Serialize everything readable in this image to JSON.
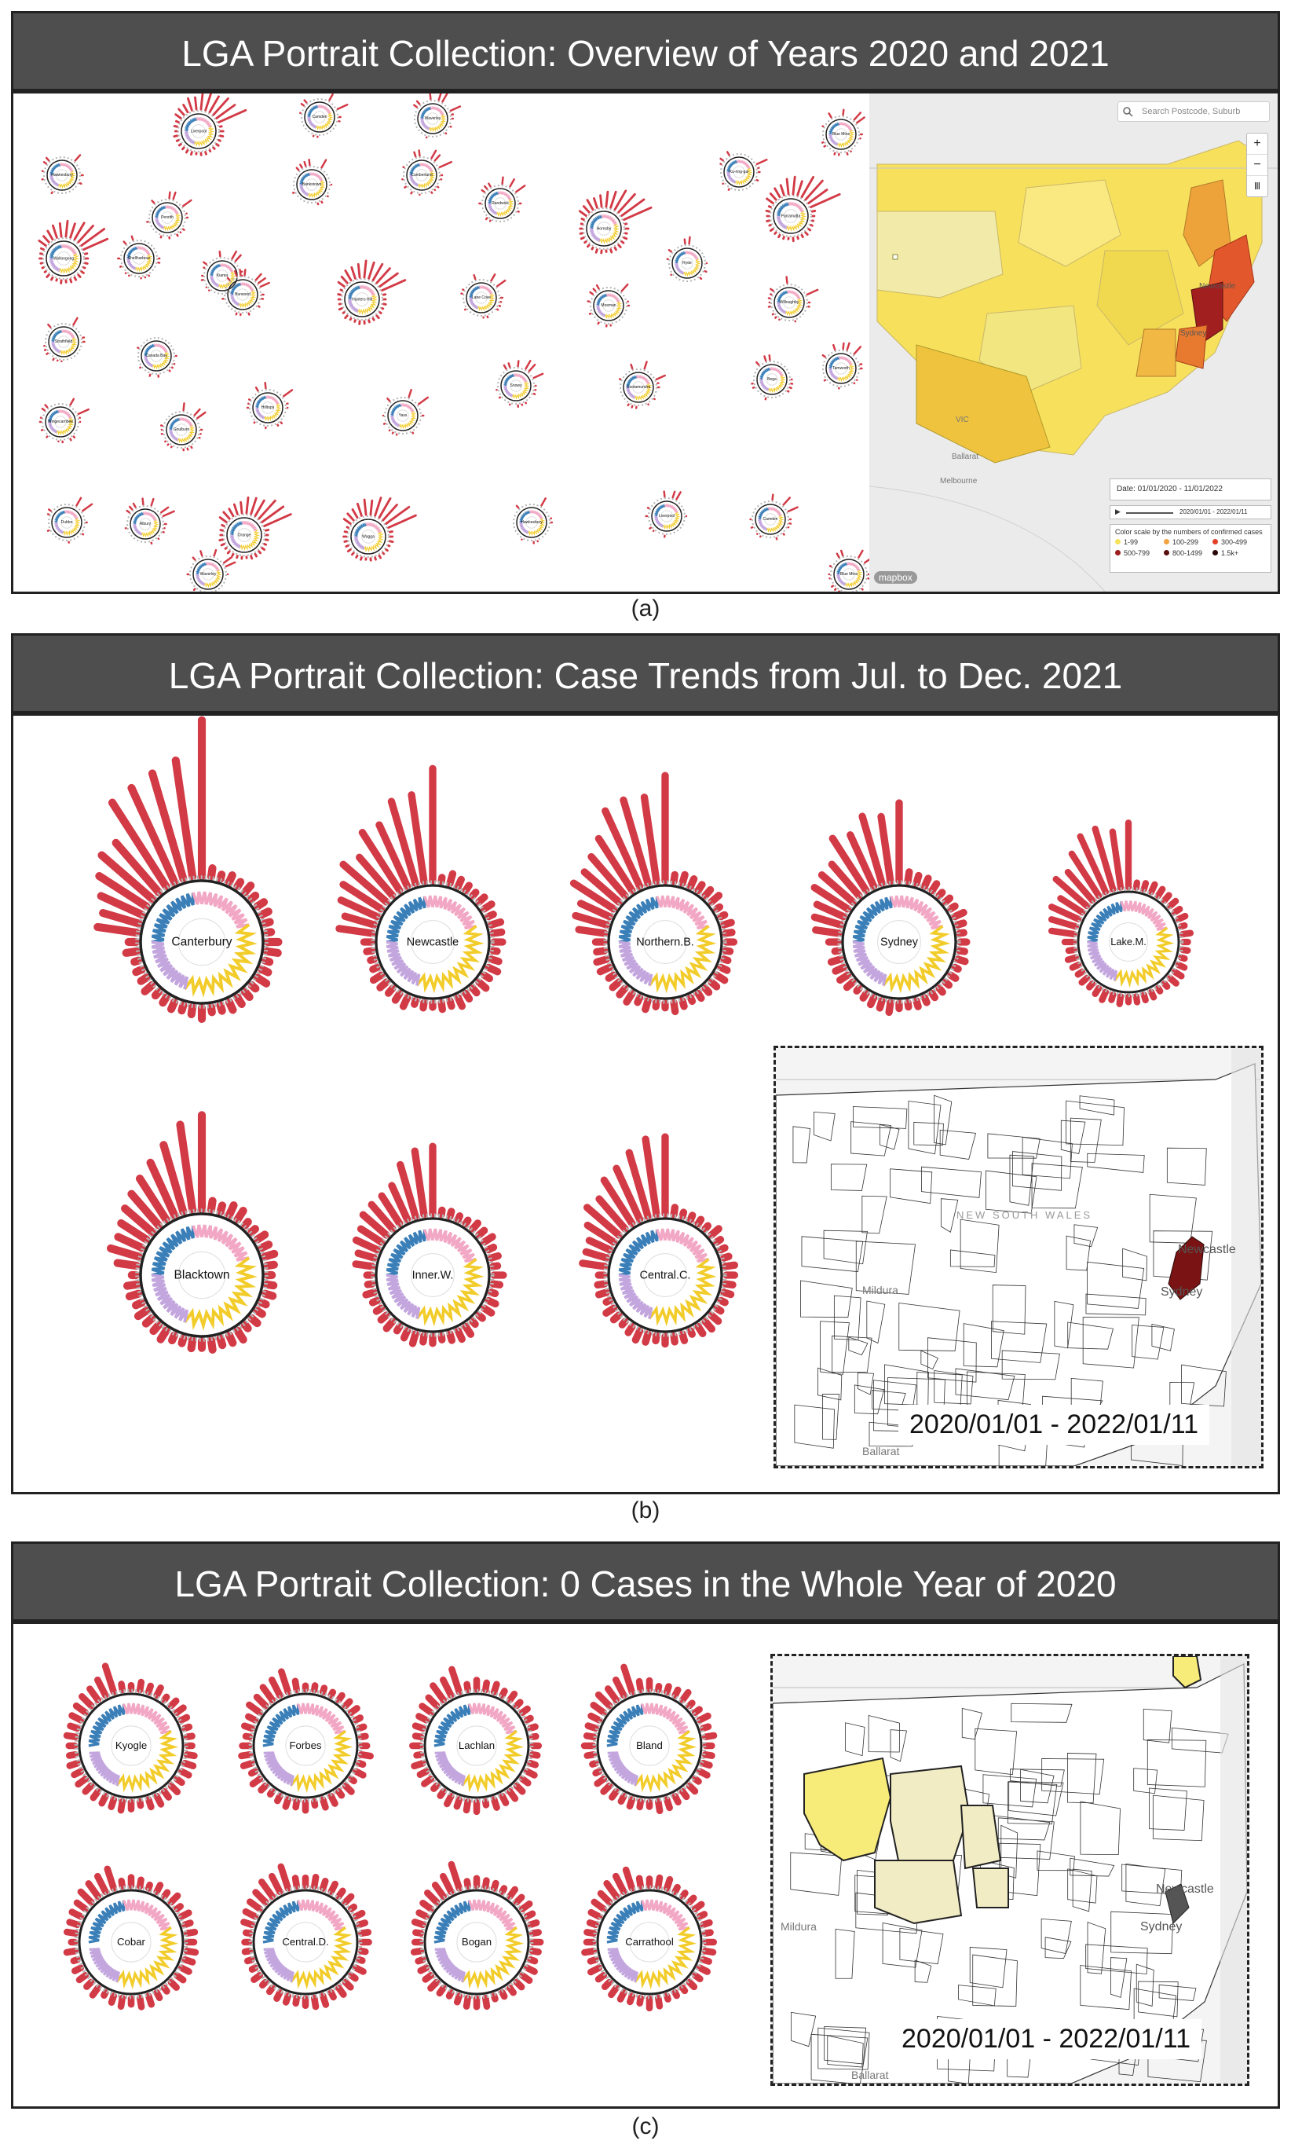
{
  "panel_a": {
    "title": "LGA Portrait Collection: Overview of Years 2020 and 2021",
    "caption": "(a)",
    "search_placeholder": "Search Postcode, Suburb",
    "zoom_in": "+",
    "zoom_out": "−",
    "layers": "Ⅲ",
    "map_labels": [
      "Newcastle",
      "Sydney",
      "VIC",
      "Melbourne",
      "Ballarat"
    ],
    "date_label": "Date: 01/01/2020 - 11/01/2022",
    "slider_range": "2020/01/01 - 2022/01/11",
    "legend_title": "Color scale by the numbers of confirmed cases",
    "legend": [
      {
        "label": "1-99",
        "color": "#f5e35a"
      },
      {
        "label": "100-299",
        "color": "#f1a340"
      },
      {
        "label": "300-499",
        "color": "#e2402a"
      },
      {
        "label": "500-799",
        "color": "#9c1e1e"
      },
      {
        "label": "800-1499",
        "color": "#5a1010"
      },
      {
        "label": "1.5k+",
        "color": "#2a0505"
      }
    ],
    "attribution": "mapbox",
    "glyph_labels": [
      "Hawkesbury",
      "Liverpool",
      "Camden",
      "Waverley",
      "Blue Mtns",
      "Penrith",
      "Bankstown",
      "Cumberland",
      "Wollongong",
      "Shellharbour",
      "Kiama",
      "Randwick",
      "Hornsby",
      "Ku-ring-gai",
      "Parramatta",
      "Strathfield",
      "Canada Bay",
      "Burwood",
      "Hunters Hill",
      "Lane Cove",
      "Mosman",
      "Ryde",
      "Willoughby",
      "Wingecarribee",
      "Goulburn",
      "Hilltops",
      "Yass",
      "Snowy",
      "Cootamundra",
      "Bega",
      "Tamworth",
      "Dubbo",
      "Albury",
      "Orange",
      "Wagga"
    ]
  },
  "panel_b": {
    "title": "LGA Portrait Collection: Case Trends from Jul. to Dec. 2021",
    "caption": "(b)",
    "glyphs": [
      "Canterbury",
      "Newcastle",
      "Northern.B.",
      "Sydney",
      "Lake.M.",
      "Blacktown",
      "Inner.W.",
      "Central.C."
    ],
    "map_labels": [
      "Newcastle",
      "Sydney",
      "Mildura",
      "Ballarat",
      "NEW SOUTH WALES"
    ],
    "date_range": "2020/01/01 - 2022/01/11"
  },
  "panel_c": {
    "title": "LGA Portrait Collection: 0 Cases in the Whole Year of 2020",
    "caption": "(c)",
    "glyphs": [
      "Kyogle",
      "Forbes",
      "Lachlan",
      "Bland",
      "Cobar",
      "Central.D.",
      "Bogan",
      "Carrathool"
    ],
    "map_labels": [
      "Newcastle",
      "Sydney",
      "Mildura",
      "Ballarat"
    ],
    "date_range": "2020/01/01 - 2022/01/11"
  },
  "colors": {
    "bar": "#d23a46",
    "blue": "#3b7fb8",
    "pink": "#f2a8c4",
    "yellow": "#f2cc2a",
    "lilac": "#c3a6de",
    "gray_ring": "#b5b5b5",
    "title_bg": "#4e4e4e"
  }
}
